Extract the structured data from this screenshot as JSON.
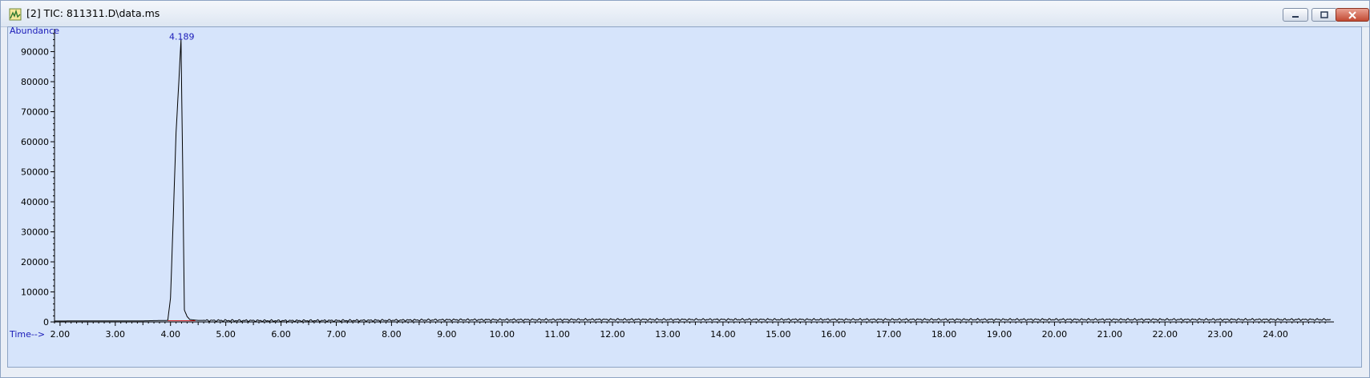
{
  "window": {
    "title": "[2] TIC: 811311.D\\data.ms",
    "icon": "chromatogram-app-icon",
    "buttons": [
      "minimize",
      "restore",
      "close"
    ]
  },
  "colors": {
    "plot_background": "#d6e4fb",
    "label_blue": "#1a1ab8",
    "trace": "#000000",
    "baseline_marker": "#d02020"
  },
  "chart_data": {
    "type": "line",
    "ylabel": "Abundance",
    "xlabel": "Time-->",
    "xlim": [
      1.9,
      25.0
    ],
    "ylim": [
      0,
      96000
    ],
    "x_ticks": [
      "2.00",
      "3.00",
      "4.00",
      "5.00",
      "6.00",
      "7.00",
      "8.00",
      "9.00",
      "10.00",
      "11.00",
      "12.00",
      "13.00",
      "14.00",
      "15.00",
      "16.00",
      "17.00",
      "18.00",
      "19.00",
      "20.00",
      "21.00",
      "22.00",
      "23.00",
      "24.00"
    ],
    "y_ticks": [
      "0",
      "10000",
      "20000",
      "30000",
      "40000",
      "50000",
      "60000",
      "70000",
      "80000",
      "90000"
    ],
    "annotations": [
      {
        "text": "4.189",
        "x": 4.189,
        "y": 94000
      }
    ],
    "series": [
      {
        "x": [
          1.9,
          3.5,
          3.95,
          4.0,
          4.05,
          4.1,
          4.15,
          4.189,
          4.22,
          4.25,
          4.3,
          4.35,
          4.5,
          6.0,
          7.0,
          8.0,
          9.0,
          12.0,
          15.0,
          18.0,
          21.0,
          24.0,
          25.0
        ],
        "y": [
          300,
          350,
          500,
          8000,
          35000,
          63000,
          80000,
          94000,
          52000,
          4000,
          1800,
          800,
          500,
          400,
          450,
          550,
          700,
          800,
          800,
          800,
          800,
          800,
          800
        ]
      }
    ]
  }
}
